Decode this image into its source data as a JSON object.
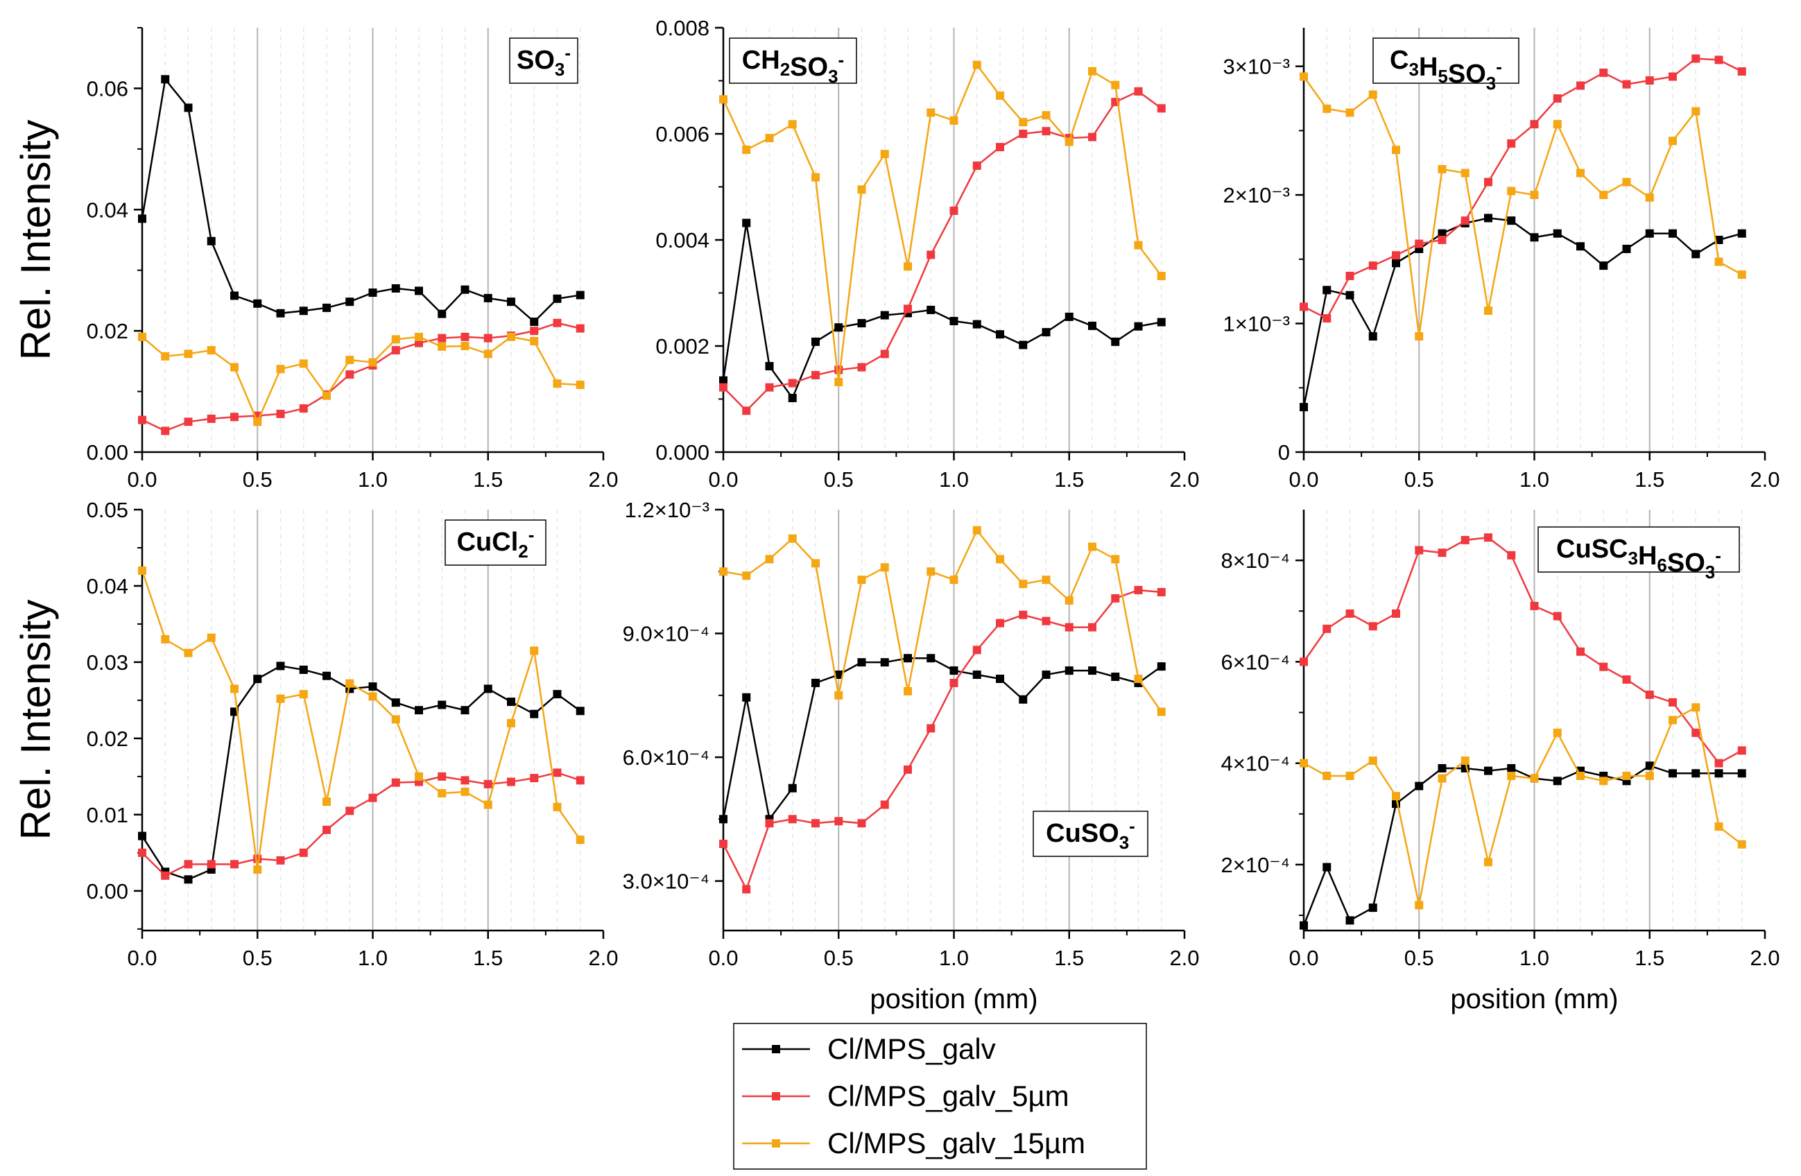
{
  "chart_data": [
    {
      "type": "line",
      "title": "SO3-",
      "title_main": "SO",
      "title_parts": [
        [
          "SO",
          ""
        ],
        [
          "3",
          "sub"
        ],
        [
          "-",
          "sup"
        ]
      ],
      "xlabel": "",
      "ylabel": "Rel. Intensity",
      "xlim": [
        0,
        2.0
      ],
      "ylim": [
        0,
        0.07
      ],
      "xticks": [
        0.0,
        0.5,
        1.0,
        1.5,
        2.0
      ],
      "xtick_labels": [
        "0.0",
        "0.5",
        "1.0",
        "1.5",
        "2.0"
      ],
      "yticks": [
        0,
        0.02,
        0.04,
        0.06
      ],
      "ytick_labels": [
        "0.00",
        "0.02",
        "0.04",
        "0.06"
      ],
      "x": [
        0.0,
        0.1,
        0.2,
        0.3,
        0.4,
        0.5,
        0.6,
        0.7,
        0.8,
        0.9,
        1.0,
        1.1,
        1.2,
        1.3,
        1.4,
        1.5,
        1.6,
        1.7,
        1.8,
        1.9
      ],
      "series": [
        {
          "name": "Cl/MPS_galv",
          "values": [
            0.0385,
            0.0615,
            0.0568,
            0.0348,
            0.0258,
            0.0245,
            0.0229,
            0.0233,
            0.0238,
            0.0248,
            0.0263,
            0.027,
            0.0266,
            0.0228,
            0.0268,
            0.0254,
            0.0248,
            0.0215,
            0.0253,
            0.0259
          ]
        },
        {
          "name": "Cl/MPS_galv_5µm",
          "values": [
            0.0053,
            0.0035,
            0.005,
            0.0055,
            0.0058,
            0.006,
            0.0063,
            0.0072,
            0.0095,
            0.0128,
            0.0143,
            0.0168,
            0.018,
            0.0188,
            0.019,
            0.0188,
            0.0192,
            0.02,
            0.0213,
            0.0204
          ]
        },
        {
          "name": "Cl/MPS_galv_15µm",
          "values": [
            0.019,
            0.0158,
            0.0162,
            0.0168,
            0.014,
            0.005,
            0.0137,
            0.0146,
            0.0093,
            0.0152,
            0.0148,
            0.0186,
            0.019,
            0.0174,
            0.0175,
            0.0162,
            0.019,
            0.0183,
            0.0113,
            0.0111
          ]
        }
      ]
    },
    {
      "type": "line",
      "title": "CH2SO3-",
      "title_parts": [
        [
          "CH",
          ""
        ],
        [
          "2",
          "sub"
        ],
        [
          "SO",
          ""
        ],
        [
          "3",
          "sub"
        ],
        [
          "-",
          "sup"
        ]
      ],
      "xlabel": "",
      "ylabel": "",
      "xlim": [
        0,
        2.0
      ],
      "ylim": [
        0,
        0.008
      ],
      "xticks": [
        0.0,
        0.5,
        1.0,
        1.5,
        2.0
      ],
      "xtick_labels": [
        "0.0",
        "0.5",
        "1.0",
        "1.5",
        "2.0"
      ],
      "yticks": [
        0,
        0.002,
        0.004,
        0.006,
        0.008
      ],
      "ytick_labels": [
        "0.000",
        "0.002",
        "0.004",
        "0.006",
        "0.008"
      ],
      "x": [
        0.0,
        0.1,
        0.2,
        0.3,
        0.4,
        0.5,
        0.6,
        0.7,
        0.8,
        0.9,
        1.0,
        1.1,
        1.2,
        1.3,
        1.4,
        1.5,
        1.6,
        1.7,
        1.8,
        1.9
      ],
      "series": [
        {
          "name": "Cl/MPS_galv",
          "values": [
            0.00135,
            0.00432,
            0.00162,
            0.00102,
            0.00208,
            0.00235,
            0.00243,
            0.00258,
            0.00262,
            0.00268,
            0.00247,
            0.00241,
            0.00222,
            0.00202,
            0.00226,
            0.00255,
            0.00238,
            0.00208,
            0.00237,
            0.00245
          ]
        },
        {
          "name": "Cl/MPS_galv_5µm",
          "values": [
            0.00122,
            0.00078,
            0.00122,
            0.0013,
            0.00145,
            0.00155,
            0.0016,
            0.00185,
            0.0027,
            0.00372,
            0.00455,
            0.0054,
            0.00575,
            0.006,
            0.00605,
            0.00592,
            0.00594,
            0.0066,
            0.0068,
            0.00648
          ]
        },
        {
          "name": "Cl/MPS_galv_15µm",
          "values": [
            0.00665,
            0.0057,
            0.00592,
            0.00618,
            0.00518,
            0.00132,
            0.00495,
            0.00562,
            0.0035,
            0.0064,
            0.00625,
            0.0073,
            0.00672,
            0.00622,
            0.00635,
            0.00585,
            0.00718,
            0.00692,
            0.0039,
            0.00332
          ]
        }
      ]
    },
    {
      "type": "line",
      "title": "C3H5SO3-",
      "title_parts": [
        [
          "C",
          ""
        ],
        [
          "3",
          "sub"
        ],
        [
          "H",
          ""
        ],
        [
          "5",
          "sub"
        ],
        [
          "SO",
          ""
        ],
        [
          "3",
          "sub"
        ],
        [
          "-",
          "sup"
        ]
      ],
      "xlabel": "",
      "ylabel": "",
      "xlim": [
        0,
        2.0
      ],
      "ylim": [
        0,
        0.0033
      ],
      "xticks": [
        0.0,
        0.5,
        1.0,
        1.5,
        2.0
      ],
      "xtick_labels": [
        "0.0",
        "0.5",
        "1.0",
        "1.5",
        "2.0"
      ],
      "yticks": [
        0,
        0.001,
        0.002,
        0.003
      ],
      "ytick_labels": [
        "0",
        "1×10⁻³",
        "2×10⁻³",
        "3×10⁻³"
      ],
      "x": [
        0.0,
        0.1,
        0.2,
        0.3,
        0.4,
        0.5,
        0.6,
        0.7,
        0.8,
        0.9,
        1.0,
        1.1,
        1.2,
        1.3,
        1.4,
        1.5,
        1.6,
        1.7,
        1.8,
        1.9
      ],
      "series": [
        {
          "name": "Cl/MPS_galv",
          "values": [
            0.00035,
            0.00126,
            0.00122,
            0.0009,
            0.00147,
            0.00158,
            0.0017,
            0.00178,
            0.00182,
            0.0018,
            0.00167,
            0.0017,
            0.0016,
            0.00145,
            0.00158,
            0.0017,
            0.0017,
            0.00154,
            0.00165,
            0.0017
          ]
        },
        {
          "name": "Cl/MPS_galv_5µm",
          "values": [
            0.00113,
            0.00104,
            0.00137,
            0.00145,
            0.00153,
            0.00162,
            0.00165,
            0.0018,
            0.0021,
            0.0024,
            0.00255,
            0.00275,
            0.00285,
            0.00295,
            0.00286,
            0.00289,
            0.00292,
            0.00306,
            0.00305,
            0.00296
          ]
        },
        {
          "name": "Cl/MPS_galv_15µm",
          "values": [
            0.00292,
            0.00267,
            0.00264,
            0.00278,
            0.00235,
            0.0009,
            0.0022,
            0.00217,
            0.0011,
            0.00203,
            0.002,
            0.00255,
            0.00217,
            0.002,
            0.0021,
            0.00198,
            0.00242,
            0.00265,
            0.00148,
            0.00138
          ]
        }
      ]
    },
    {
      "type": "line",
      "title": "CuCl2-",
      "title_parts": [
        [
          "CuCl",
          ""
        ],
        [
          "2",
          "sub"
        ],
        [
          "-",
          "sup"
        ]
      ],
      "xlabel": "",
      "ylabel": "Rel. Intensity",
      "xlim": [
        0,
        2.0
      ],
      "ylim": [
        -0.0052,
        0.05
      ],
      "xticks": [
        0.0,
        0.5,
        1.0,
        1.5,
        2.0
      ],
      "xtick_labels": [
        "0.0",
        "0.5",
        "1.0",
        "1.5",
        "2.0"
      ],
      "yticks": [
        0,
        0.01,
        0.02,
        0.03,
        0.04,
        0.05
      ],
      "ytick_labels": [
        "0.00",
        "0.01",
        "0.02",
        "0.03",
        "0.04",
        "0.05"
      ],
      "x": [
        0.0,
        0.1,
        0.2,
        0.3,
        0.4,
        0.5,
        0.6,
        0.7,
        0.8,
        0.9,
        1.0,
        1.1,
        1.2,
        1.3,
        1.4,
        1.5,
        1.6,
        1.7,
        1.8,
        1.9
      ],
      "series": [
        {
          "name": "Cl/MPS_galv",
          "values": [
            0.0072,
            0.0025,
            0.0015,
            0.0028,
            0.0235,
            0.0278,
            0.0295,
            0.029,
            0.0282,
            0.0265,
            0.0268,
            0.0247,
            0.0237,
            0.0244,
            0.0237,
            0.0265,
            0.0248,
            0.0232,
            0.0258,
            0.0236
          ]
        },
        {
          "name": "Cl/MPS_galv_5µm",
          "values": [
            0.005,
            0.002,
            0.0035,
            0.0035,
            0.0035,
            0.0042,
            0.004,
            0.005,
            0.008,
            0.0105,
            0.0122,
            0.0142,
            0.0143,
            0.015,
            0.0145,
            0.014,
            0.0143,
            0.0148,
            0.0155,
            0.0145
          ]
        },
        {
          "name": "Cl/MPS_galv_15µm",
          "values": [
            0.042,
            0.033,
            0.0312,
            0.0332,
            0.0265,
            0.0028,
            0.0252,
            0.0258,
            0.0117,
            0.0272,
            0.0255,
            0.0225,
            0.015,
            0.0128,
            0.013,
            0.0113,
            0.022,
            0.0315,
            0.011,
            0.0067
          ]
        }
      ]
    },
    {
      "type": "line",
      "title": "CuSO3-",
      "title_parts": [
        [
          "CuSO",
          ""
        ],
        [
          "3",
          "sub"
        ],
        [
          "-",
          "sup"
        ]
      ],
      "xlabel": "position (mm)",
      "ylabel": "",
      "xlim": [
        0,
        2.0
      ],
      "ylim": [
        0.00018,
        0.0012
      ],
      "xticks": [
        0.0,
        0.5,
        1.0,
        1.5,
        2.0
      ],
      "xtick_labels": [
        "0.0",
        "0.5",
        "1.0",
        "1.5",
        "2.0"
      ],
      "yticks": [
        0.0003,
        0.0006,
        0.0009,
        0.0012
      ],
      "ytick_labels": [
        "3.0×10⁻⁴",
        "6.0×10⁻⁴",
        "9.0×10⁻⁴",
        "1.2×10⁻³"
      ],
      "x": [
        0.0,
        0.1,
        0.2,
        0.3,
        0.4,
        0.5,
        0.6,
        0.7,
        0.8,
        0.9,
        1.0,
        1.1,
        1.2,
        1.3,
        1.4,
        1.5,
        1.6,
        1.7,
        1.8,
        1.9
      ],
      "series": [
        {
          "name": "Cl/MPS_galv",
          "values": [
            0.00045,
            0.000745,
            0.00045,
            0.000525,
            0.00078,
            0.0008,
            0.00083,
            0.00083,
            0.00084,
            0.00084,
            0.00081,
            0.0008,
            0.00079,
            0.00074,
            0.0008,
            0.00081,
            0.00081,
            0.000795,
            0.00078,
            0.00082
          ]
        },
        {
          "name": "Cl/MPS_galv_5µm",
          "values": [
            0.00039,
            0.00028,
            0.00044,
            0.00045,
            0.00044,
            0.000445,
            0.00044,
            0.000485,
            0.00057,
            0.00067,
            0.00078,
            0.00086,
            0.000925,
            0.000945,
            0.00093,
            0.000915,
            0.000915,
            0.000985,
            0.001005,
            0.001
          ]
        },
        {
          "name": "Cl/MPS_galv_15µm",
          "values": [
            0.00105,
            0.00104,
            0.00108,
            0.00113,
            0.00107,
            0.00075,
            0.00103,
            0.00106,
            0.00076,
            0.00105,
            0.00103,
            0.00115,
            0.00108,
            0.00102,
            0.00103,
            0.00098,
            0.00111,
            0.00108,
            0.00079,
            0.00071
          ]
        }
      ]
    },
    {
      "type": "line",
      "title": "CuSC3H6SO3-",
      "title_parts": [
        [
          "CuSC",
          ""
        ],
        [
          "3",
          "sub"
        ],
        [
          "H",
          ""
        ],
        [
          "6",
          "sub"
        ],
        [
          "SO",
          ""
        ],
        [
          "3",
          "sub"
        ],
        [
          "-",
          "sup"
        ]
      ],
      "xlabel": "position (mm)",
      "ylabel": "",
      "xlim": [
        0,
        2.0
      ],
      "ylim": [
        7e-05,
        0.0009
      ],
      "xticks": [
        0.0,
        0.5,
        1.0,
        1.5,
        2.0
      ],
      "xtick_labels": [
        "0.0",
        "0.5",
        "1.0",
        "1.5",
        "2.0"
      ],
      "yticks": [
        0.0002,
        0.0004,
        0.0006,
        0.0008
      ],
      "ytick_labels": [
        "2×10⁻⁴",
        "4×10⁻⁴",
        "6×10⁻⁴",
        "8×10⁻⁴"
      ],
      "x": [
        0.0,
        0.1,
        0.2,
        0.3,
        0.4,
        0.5,
        0.6,
        0.7,
        0.8,
        0.9,
        1.0,
        1.1,
        1.2,
        1.3,
        1.4,
        1.5,
        1.6,
        1.7,
        1.8,
        1.9
      ],
      "series": [
        {
          "name": "Cl/MPS_galv",
          "values": [
            8e-05,
            0.000195,
            9e-05,
            0.000115,
            0.00032,
            0.000355,
            0.00039,
            0.00039,
            0.000385,
            0.00039,
            0.00037,
            0.000365,
            0.000385,
            0.000375,
            0.000365,
            0.000395,
            0.00038,
            0.00038,
            0.00038,
            0.00038
          ]
        },
        {
          "name": "Cl/MPS_galv_5µm",
          "values": [
            0.0006,
            0.000665,
            0.000695,
            0.00067,
            0.000695,
            0.00082,
            0.000815,
            0.00084,
            0.000845,
            0.00081,
            0.00071,
            0.00069,
            0.00062,
            0.00059,
            0.000565,
            0.000535,
            0.00052,
            0.00046,
            0.0004,
            0.000425
          ]
        },
        {
          "name": "Cl/MPS_galv_15µm",
          "values": [
            0.0004,
            0.000375,
            0.000375,
            0.000405,
            0.000335,
            0.00012,
            0.00037,
            0.000405,
            0.000205,
            0.000375,
            0.00037,
            0.00046,
            0.000375,
            0.000365,
            0.000375,
            0.000375,
            0.000485,
            0.00051,
            0.000275,
            0.00024
          ]
        }
      ]
    }
  ],
  "legend": {
    "items": [
      "Cl/MPS_galv",
      "Cl/MPS_galv_5µm",
      "Cl/MPS_galv_15µm"
    ],
    "colors": [
      "#000000",
      "#f0393f",
      "#f5a613"
    ]
  }
}
